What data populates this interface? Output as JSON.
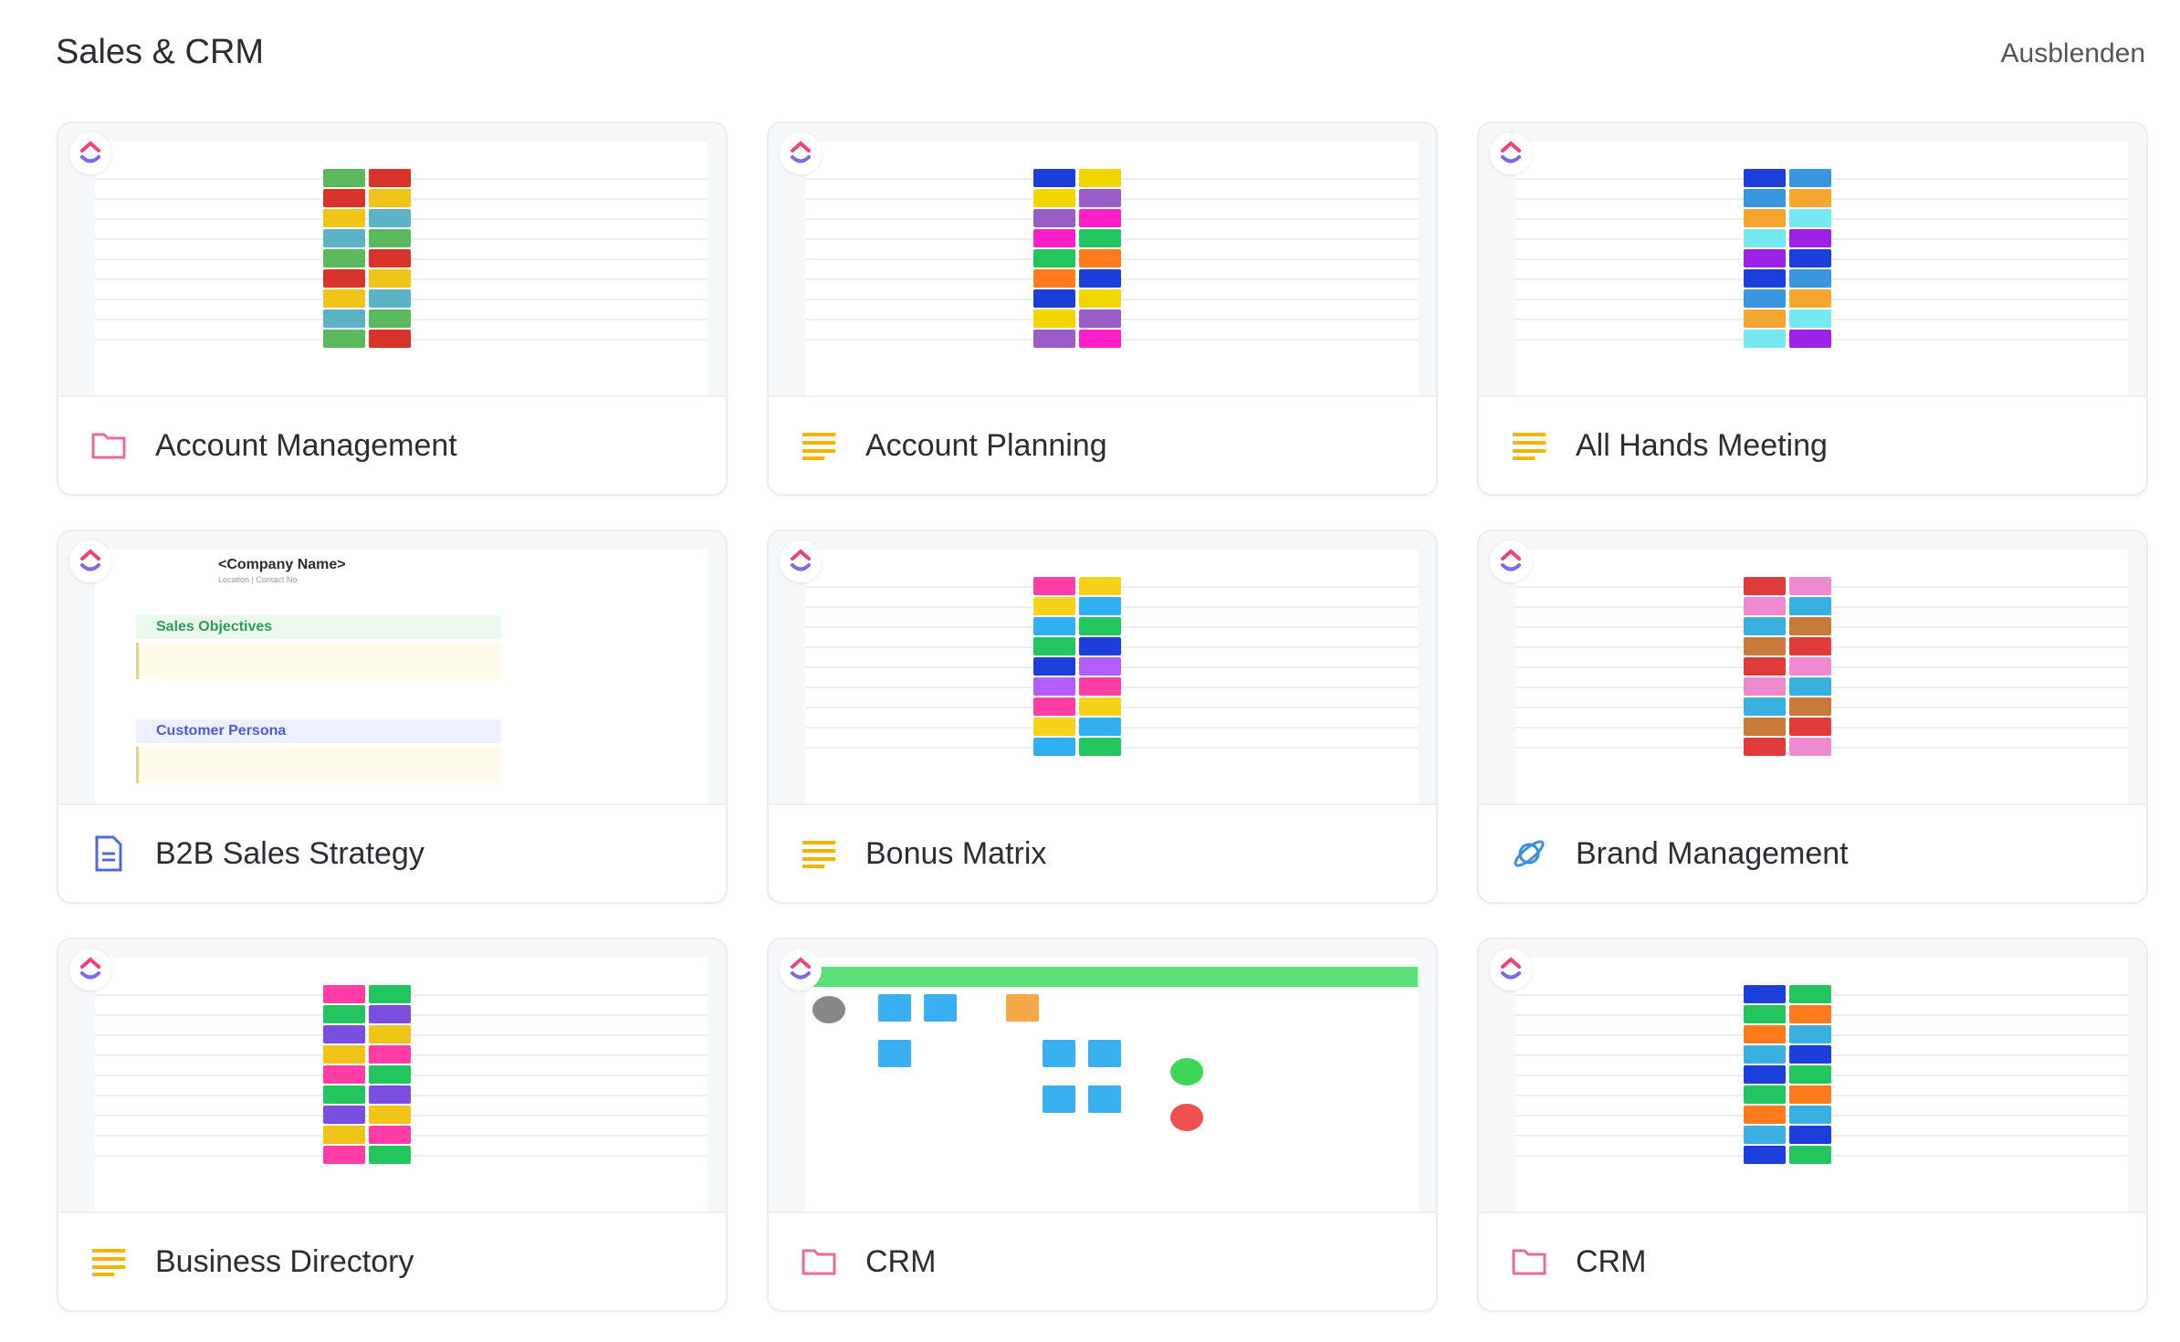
{
  "section": {
    "title": "Sales & CRM",
    "hide_label": "Ausblenden"
  },
  "cards": [
    {
      "label": "Account Management",
      "icon": "folder-icon",
      "icon_color": "#e86a9a"
    },
    {
      "label": "Account Planning",
      "icon": "list-icon",
      "icon_color": "#f4b400"
    },
    {
      "label": "All Hands Meeting",
      "icon": "list-icon",
      "icon_color": "#f4b400"
    },
    {
      "label": "B2B Sales Strategy",
      "icon": "document-icon",
      "icon_color": "#4f6bd8"
    },
    {
      "label": "Bonus Matrix",
      "icon": "list-icon",
      "icon_color": "#f4b400"
    },
    {
      "label": "Brand Management",
      "icon": "planet-icon",
      "icon_color": "#3a8fe0"
    },
    {
      "label": "Business Directory",
      "icon": "list-icon",
      "icon_color": "#f4b400"
    },
    {
      "label": "CRM",
      "icon": "folder-icon",
      "icon_color": "#e86a9a"
    },
    {
      "label": "CRM",
      "icon": "folder-icon",
      "icon_color": "#e86a9a"
    }
  ],
  "previews": {
    "b2b": {
      "company": "<Company Name>",
      "sub": "Location | Contact No",
      "obj": "Sales Objectives",
      "persona": "Customer Persona"
    }
  }
}
